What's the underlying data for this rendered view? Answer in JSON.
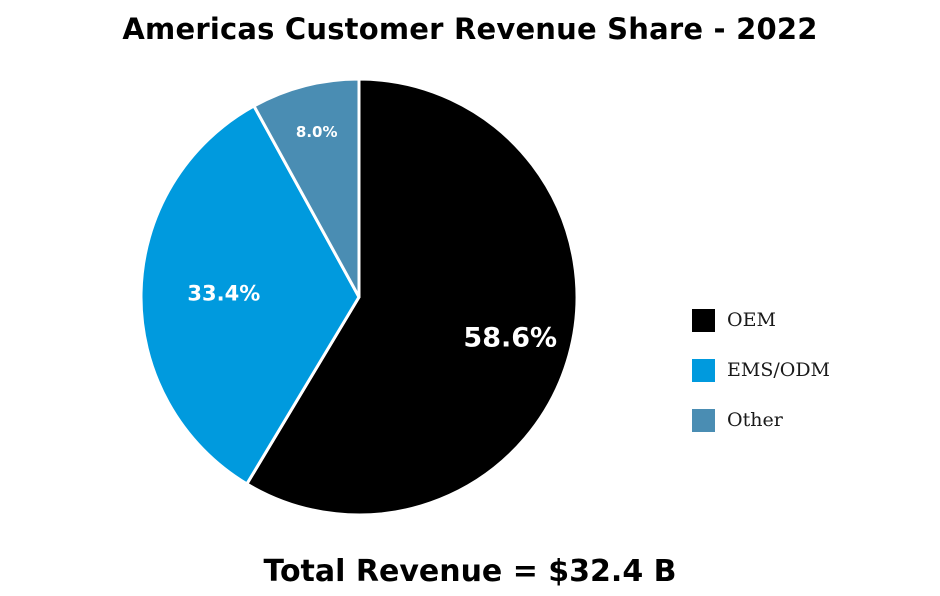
{
  "chart_data": {
    "type": "pie",
    "title": "Americas Customer Revenue Share - 2022",
    "footer": "Total Revenue = $32.4 B",
    "slices": [
      {
        "label": "OEM",
        "value": 58.6,
        "display": "58.6%",
        "color": "#000000",
        "label_color": "#ffffff"
      },
      {
        "label": "EMS/ODM",
        "value": 33.4,
        "display": "33.4%",
        "color": "#009ADE",
        "label_color": "#ffffff"
      },
      {
        "label": "Other",
        "value": 8.0,
        "display": "8.0%",
        "color": "#4A8DB3",
        "label_color": "#ffffff"
      }
    ],
    "legend": {
      "position": "right"
    }
  }
}
